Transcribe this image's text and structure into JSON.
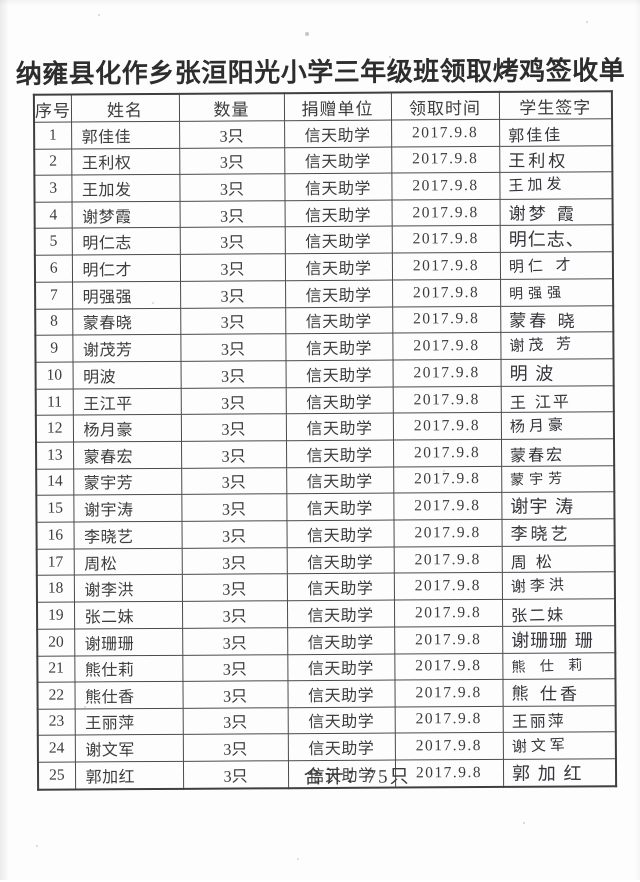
{
  "colors": {
    "paper": "#fdfdfd",
    "ink": "#3c3c3c",
    "border": "#4b4b4b"
  },
  "document": {
    "title": "纳雍县化作乡张洹阳光小学三年级班领取烤鸡签收单",
    "total_label": "合计：75只",
    "table": {
      "headers": [
        "序号",
        "姓名",
        "数量",
        "捐赠单位",
        "领取时间",
        "学生签字"
      ],
      "rows": [
        {
          "no": "1",
          "name": "郭佳佳",
          "qty": "3只",
          "donor": "信天助学",
          "date": "2017.9.8",
          "signature": "郭佳佳"
        },
        {
          "no": "2",
          "name": "王利权",
          "qty": "3只",
          "donor": "信天助学",
          "date": "2017.9.8",
          "signature": "王利权"
        },
        {
          "no": "3",
          "name": "王加发",
          "qty": "3只",
          "donor": "信天助学",
          "date": "2017.9.8",
          "signature": "王加发"
        },
        {
          "no": "4",
          "name": "谢梦霞",
          "qty": "3只",
          "donor": "信天助学",
          "date": "2017.9.8",
          "signature": "谢梦 霞"
        },
        {
          "no": "5",
          "name": "明仁志",
          "qty": "3只",
          "donor": "信天助学",
          "date": "2017.9.8",
          "signature": "明仁志、"
        },
        {
          "no": "6",
          "name": "明仁才",
          "qty": "3只",
          "donor": "信天助学",
          "date": "2017.9.8",
          "signature": "明仁 才"
        },
        {
          "no": "7",
          "name": "明强强",
          "qty": "3只",
          "donor": "信天助学",
          "date": "2017.9.8",
          "signature": "明强强"
        },
        {
          "no": "8",
          "name": "蒙春晓",
          "qty": "3只",
          "donor": "信天助学",
          "date": "2017.9.8",
          "signature": "蒙春 晓"
        },
        {
          "no": "9",
          "name": "谢茂芳",
          "qty": "3只",
          "donor": "信天助学",
          "date": "2017.9.8",
          "signature": "谢茂 芳"
        },
        {
          "no": "10",
          "name": "明波",
          "qty": "3只",
          "donor": "信天助学",
          "date": "2017.9.8",
          "signature": "明 波"
        },
        {
          "no": "11",
          "name": "王江平",
          "qty": "3只",
          "donor": "信天助学",
          "date": "2017.9.8",
          "signature": "王 江平"
        },
        {
          "no": "12",
          "name": "杨月豪",
          "qty": "3只",
          "donor": "信天助学",
          "date": "2017.9.8",
          "signature": "杨月豪"
        },
        {
          "no": "13",
          "name": "蒙春宏",
          "qty": "3只",
          "donor": "信天助学",
          "date": "2017.9.8",
          "signature": "蒙春宏"
        },
        {
          "no": "14",
          "name": "蒙宇芳",
          "qty": "3只",
          "donor": "信天助学",
          "date": "2017.9.8",
          "signature": "蒙宇芳"
        },
        {
          "no": "15",
          "name": "谢宇涛",
          "qty": "3只",
          "donor": "信天助学",
          "date": "2017.9.8",
          "signature": "谢宇 涛"
        },
        {
          "no": "16",
          "name": "李晓艺",
          "qty": "3只",
          "donor": "信天助学",
          "date": "2017.9.8",
          "signature": "李晓艺"
        },
        {
          "no": "17",
          "name": "周松",
          "qty": "3只",
          "donor": "信天助学",
          "date": "2017.9.8",
          "signature": "周  松"
        },
        {
          "no": "18",
          "name": "谢李洪",
          "qty": "3只",
          "donor": "信天助学",
          "date": "2017.9.8",
          "signature": "谢李洪"
        },
        {
          "no": "19",
          "name": "张二妹",
          "qty": "3只",
          "donor": "信天助学",
          "date": "2017.9.8",
          "signature": "张二妹"
        },
        {
          "no": "20",
          "name": "谢珊珊",
          "qty": "3只",
          "donor": "信天助学",
          "date": "2017.9.8",
          "signature": "谢珊珊 珊"
        },
        {
          "no": "21",
          "name": "熊仕莉",
          "qty": "3只",
          "donor": "信天助学",
          "date": "2017.9.8",
          "signature": "熊 仕 莉"
        },
        {
          "no": "22",
          "name": "熊仕香",
          "qty": "3只",
          "donor": "信天助学",
          "date": "2017.9.8",
          "signature": "熊 仕香"
        },
        {
          "no": "23",
          "name": "王丽萍",
          "qty": "3只",
          "donor": "信天助学",
          "date": "2017.9.8",
          "signature": "王丽萍"
        },
        {
          "no": "24",
          "name": "谢文军",
          "qty": "3只",
          "donor": "信天助学",
          "date": "2017.9.8",
          "signature": "谢文军"
        },
        {
          "no": "25",
          "name": "郭加红",
          "qty": "3只",
          "donor": "信天助学",
          "date": "2017.9.8",
          "signature": "郭 加 红"
        }
      ]
    }
  }
}
